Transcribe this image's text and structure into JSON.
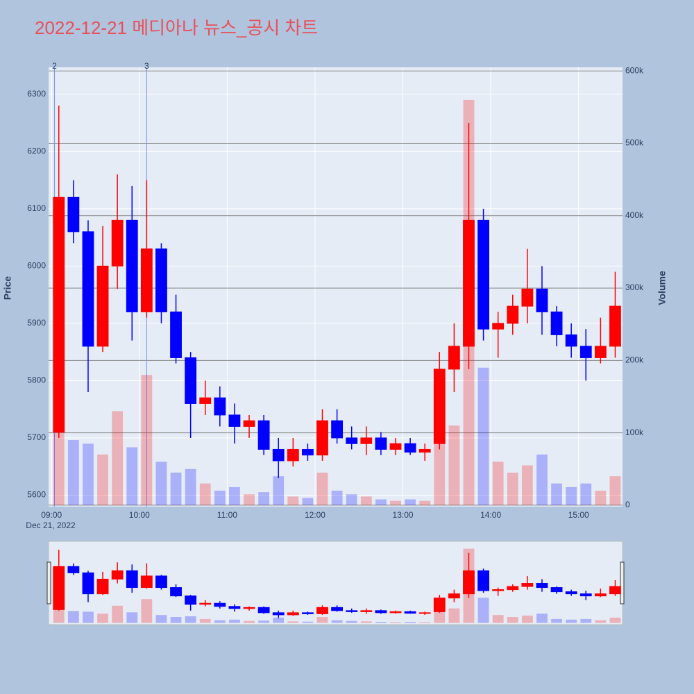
{
  "chart_data": {
    "type": "candlestick",
    "title": "2022-12-21 메디아나 뉴스_공시 차트",
    "x": [
      "2022-12-21 09:00",
      "2022-12-21 09:10",
      "2022-12-21 09:20",
      "2022-12-21 09:30",
      "2022-12-21 09:40",
      "2022-12-21 09:50",
      "2022-12-21 10:00",
      "2022-12-21 10:10",
      "2022-12-21 10:20",
      "2022-12-21 10:30",
      "2022-12-21 10:40",
      "2022-12-21 10:50",
      "2022-12-21 11:00",
      "2022-12-21 11:10",
      "2022-12-21 11:20",
      "2022-12-21 11:30",
      "2022-12-21 11:40",
      "2022-12-21 11:50",
      "2022-12-21 12:00",
      "2022-12-21 12:10",
      "2022-12-21 12:20",
      "2022-12-21 12:30",
      "2022-12-21 12:40",
      "2022-12-21 12:50",
      "2022-12-21 13:00",
      "2022-12-21 13:10",
      "2022-12-21 13:20",
      "2022-12-21 13:30",
      "2022-12-21 13:40",
      "2022-12-21 13:50",
      "2022-12-21 14:00",
      "2022-12-21 14:10",
      "2022-12-21 14:20",
      "2022-12-21 14:30",
      "2022-12-21 14:40",
      "2022-12-21 14:50",
      "2022-12-21 15:00",
      "2022-12-21 15:10",
      "2022-12-21 15:20"
    ],
    "open": [
      5710,
      6120,
      6060,
      5860,
      6000,
      6080,
      5920,
      6030,
      5920,
      5840,
      5760,
      5770,
      5740,
      5720,
      5730,
      5680,
      5660,
      5680,
      5670,
      5730,
      5700,
      5690,
      5700,
      5680,
      5690,
      5675,
      5690,
      5820,
      5860,
      6080,
      5890,
      5900,
      5930,
      5960,
      5920,
      5880,
      5860,
      5840,
      5860
    ],
    "high": [
      6280,
      6150,
      6080,
      6070,
      6160,
      6140,
      6150,
      6040,
      5950,
      5850,
      5800,
      5790,
      5760,
      5740,
      5740,
      5700,
      5700,
      5690,
      5750,
      5750,
      5720,
      5720,
      5710,
      5700,
      5700,
      5690,
      5850,
      5900,
      6250,
      6100,
      5920,
      5950,
      6030,
      6000,
      5930,
      5900,
      5890,
      5910,
      5990
    ],
    "low": [
      5700,
      6040,
      5780,
      5850,
      5960,
      5870,
      5910,
      5900,
      5830,
      5700,
      5740,
      5720,
      5690,
      5700,
      5670,
      5630,
      5650,
      5660,
      5660,
      5690,
      5680,
      5670,
      5670,
      5670,
      5670,
      5660,
      5680,
      5780,
      5820,
      5870,
      5840,
      5880,
      5900,
      5880,
      5860,
      5840,
      5800,
      5830,
      5840
    ],
    "close": [
      6120,
      6060,
      5860,
      6000,
      6080,
      5920,
      6030,
      5920,
      5840,
      5760,
      5770,
      5740,
      5720,
      5730,
      5680,
      5660,
      5680,
      5670,
      5730,
      5700,
      5690,
      5700,
      5680,
      5690,
      5675,
      5680,
      5820,
      5860,
      6080,
      5890,
      5900,
      5930,
      5960,
      5920,
      5880,
      5860,
      5840,
      5860,
      5930
    ],
    "volume": [
      190000,
      90000,
      85000,
      70000,
      130000,
      80000,
      180000,
      60000,
      45000,
      50000,
      30000,
      20000,
      25000,
      15000,
      18000,
      40000,
      12000,
      10000,
      45000,
      20000,
      15000,
      12000,
      8000,
      6000,
      8000,
      6000,
      100000,
      110000,
      560000,
      190000,
      60000,
      45000,
      55000,
      70000,
      30000,
      25000,
      30000,
      20000,
      40000
    ],
    "increasing_color": "#ff0000",
    "decreasing_color": "#0000ff",
    "ylabel": "Price",
    "y2label": "Volume",
    "xlim": [
      "2022-12-21 08:58",
      "2022-12-21 15:30"
    ],
    "xticks": [
      {
        "value": "2022-12-21 09:00",
        "label": "09:00"
      },
      {
        "value": "2022-12-21 10:00",
        "label": "10:00"
      },
      {
        "value": "2022-12-21 11:00",
        "label": "11:00"
      },
      {
        "value": "2022-12-21 12:00",
        "label": "12:00"
      },
      {
        "value": "2022-12-21 13:00",
        "label": "13:00"
      },
      {
        "value": "2022-12-21 14:00",
        "label": "14:00"
      },
      {
        "value": "2022-12-21 15:00",
        "label": "15:00"
      }
    ],
    "date_label": "Dec 21, 2022",
    "ylim": [
      5580,
      6347
    ],
    "yticks": [
      5600,
      5700,
      5800,
      5900,
      6000,
      6100,
      6200,
      6300
    ],
    "y2lim": [
      -2000,
      605000
    ],
    "y2ticks": [
      0,
      {
        "value": 100000,
        "label": "100k"
      },
      {
        "value": 200000,
        "label": "200k"
      },
      {
        "value": 300000,
        "label": "300k"
      },
      {
        "value": 400000,
        "label": "400k"
      },
      {
        "value": 500000,
        "label": "500k"
      },
      {
        "value": 600000,
        "label": "600k"
      }
    ],
    "annotations": [
      {
        "x": "2022-12-21 09:02",
        "text": "2"
      },
      {
        "x": "2022-12-21 10:05",
        "text": "3"
      }
    ],
    "grid": true,
    "rangeslider": true
  }
}
